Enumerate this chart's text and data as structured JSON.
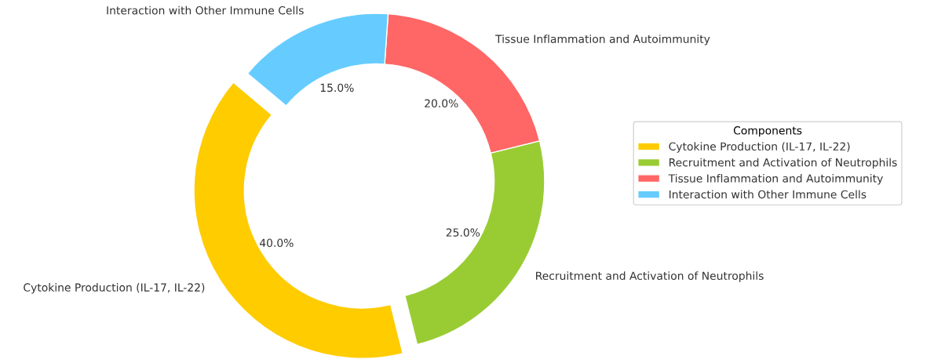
{
  "chart_data": {
    "type": "donut",
    "categories": [
      "Cytokine Production (IL-17, IL-22)",
      "Recruitment and Activation of Neutrophils",
      "Tissue Inflammation and Autoimmunity",
      "Interaction with Other Immune Cells"
    ],
    "values": [
      40,
      25,
      20,
      15
    ],
    "colors": [
      "#ffcc00",
      "#99cc33",
      "#ff6666",
      "#66ccff"
    ],
    "value_labels": [
      "40.0%",
      "25.0%",
      "20.0%",
      "15.0%"
    ],
    "legend_title": "Components",
    "legend": "right"
  }
}
